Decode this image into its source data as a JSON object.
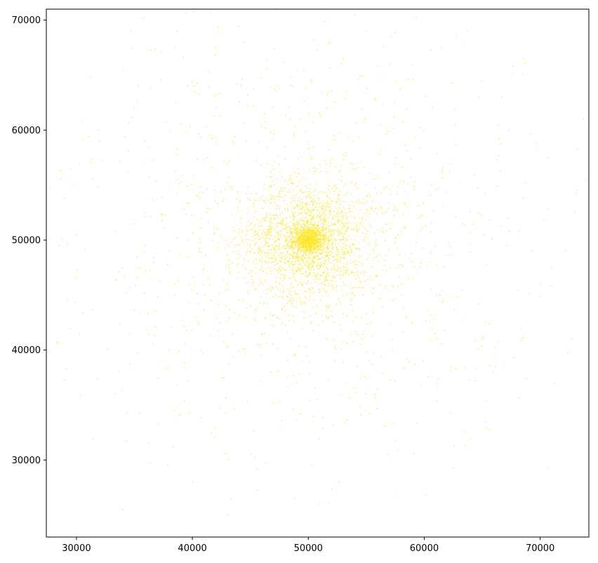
{
  "chart_data": {
    "type": "scatter",
    "title": "",
    "xlabel": "",
    "ylabel": "",
    "xlim": [
      27400,
      74200
    ],
    "ylim": [
      23000,
      71000
    ],
    "x_ticks": [
      30000,
      40000,
      50000,
      60000,
      70000
    ],
    "y_ticks": [
      30000,
      40000,
      50000,
      60000,
      70000
    ],
    "x_tick_labels": [
      "30000",
      "40000",
      "50000",
      "60000",
      "70000"
    ],
    "y_tick_labels": [
      "30000",
      "40000",
      "50000",
      "60000",
      "70000"
    ],
    "grid": false,
    "legend": "none",
    "point_color": "#fde725",
    "series": [
      {
        "center": [
          50000,
          50000
        ],
        "approx_point_count": 4000,
        "description_points": [
          [
            50000,
            50000
          ],
          [
            49500,
            50400
          ],
          [
            50500,
            49600
          ],
          [
            51200,
            50100
          ],
          [
            48800,
            49800
          ],
          [
            52000,
            49500
          ],
          [
            47500,
            50500
          ],
          [
            53000,
            52000
          ],
          [
            46000,
            48000
          ],
          [
            55000,
            54000
          ],
          [
            45000,
            44000
          ],
          [
            58000,
            46000
          ],
          [
            42000,
            56000
          ],
          [
            60000,
            60000
          ],
          [
            38000,
            40000
          ],
          [
            65000,
            41000
          ],
          [
            35000,
            62000
          ],
          [
            55000,
            69000
          ],
          [
            42000,
            67500
          ],
          [
            30000,
            50500
          ],
          [
            28500,
            49500
          ],
          [
            73000,
            52500
          ],
          [
            71000,
            47500
          ],
          [
            66000,
            38000
          ],
          [
            64000,
            32000
          ],
          [
            34000,
            25500
          ],
          [
            43000,
            25000
          ],
          [
            51000,
            26000
          ],
          [
            57000,
            66000
          ],
          [
            40000,
            28000
          ]
        ]
      }
    ]
  }
}
